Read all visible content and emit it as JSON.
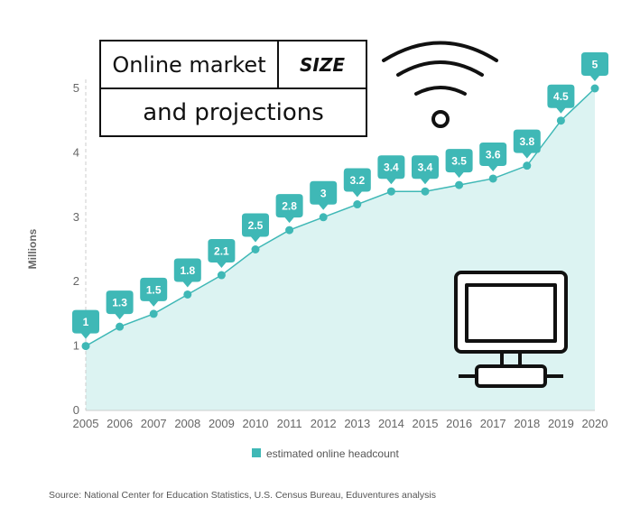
{
  "title": {
    "line1": "Online market",
    "emphasis": "SIZE",
    "line2": "and projections"
  },
  "chart_data": {
    "type": "area",
    "x": [
      "2005",
      "2006",
      "2007",
      "2008",
      "2009",
      "2010",
      "2011",
      "2012",
      "2013",
      "2014",
      "2015",
      "2016",
      "2017",
      "2018",
      "2019",
      "2020"
    ],
    "series": [
      {
        "name": "estimated online headcount",
        "values": [
          1,
          1.3,
          1.5,
          1.8,
          2.1,
          2.5,
          2.8,
          3,
          3.2,
          3.4,
          3.4,
          3.5,
          3.6,
          3.8,
          4.5,
          5
        ],
        "labels": [
          "1",
          "1.3",
          "1.5",
          "1.8",
          "2.1",
          "2.5",
          "2.8",
          "3",
          "3.2",
          "3.4",
          "3.4",
          "3.5",
          "3.6",
          "3.8",
          "4.5",
          "5"
        ]
      }
    ],
    "ylabel": "Millions",
    "ylim": [
      0,
      5
    ],
    "yticks": [
      "0",
      "1",
      "2",
      "3",
      "4",
      "5"
    ],
    "grid": false,
    "legend": "bottom",
    "colors": {
      "line": "#3fb8b6",
      "fill": "#dcf3f2",
      "label_bg": "#3fb8b6"
    }
  },
  "source": "Source: National Center for Education Statistics, U.S. Census Bureau, Eduventures analysis",
  "icons": [
    "wifi-icon",
    "computer-monitor-icon"
  ]
}
